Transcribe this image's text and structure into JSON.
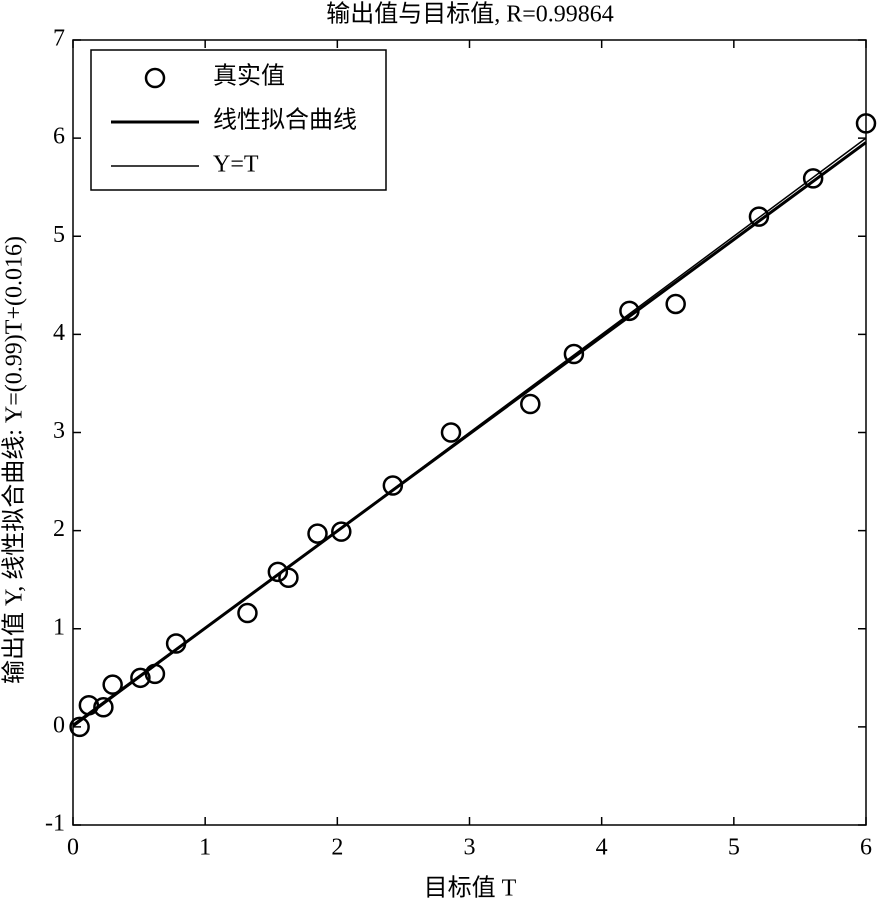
{
  "chart_data": {
    "type": "scatter",
    "title": "输出值与目标值, R=0.99864",
    "xlabel": "目标值 T",
    "ylabel": "输出值 Y, 线性拟合曲线: Y=(0.99)T+(0.016)",
    "xlim": [
      0,
      6
    ],
    "ylim": [
      -1,
      7
    ],
    "xticks": [
      0,
      1,
      2,
      3,
      4,
      5,
      6
    ],
    "yticks": [
      -1,
      0,
      1,
      2,
      3,
      4,
      5,
      6,
      7
    ],
    "legend": "upper left",
    "series": [
      {
        "name": "真实值",
        "color": "#000000",
        "kind": "markers",
        "x": [
          0.05,
          0.12,
          0.23,
          0.3,
          0.51,
          0.62,
          0.78,
          1.32,
          1.55,
          1.63,
          1.85,
          2.03,
          2.42,
          2.86,
          3.46,
          3.79,
          4.21,
          4.56,
          5.19,
          5.6,
          6.0
        ],
        "values": [
          0.0,
          0.22,
          0.2,
          0.43,
          0.5,
          0.54,
          0.85,
          1.16,
          1.58,
          1.52,
          1.97,
          1.99,
          2.46,
          3.0,
          3.29,
          3.8,
          4.24,
          4.31,
          5.2,
          5.59,
          6.15
        ]
      },
      {
        "name": "线性拟合曲线",
        "color": "#000000",
        "kind": "thick-line",
        "x": [
          0,
          6
        ],
        "values": [
          0.016,
          5.956
        ]
      },
      {
        "name": "Y=T",
        "color": "#000000",
        "kind": "thin-line",
        "x": [
          0,
          6
        ],
        "values": [
          0,
          6
        ]
      }
    ]
  }
}
